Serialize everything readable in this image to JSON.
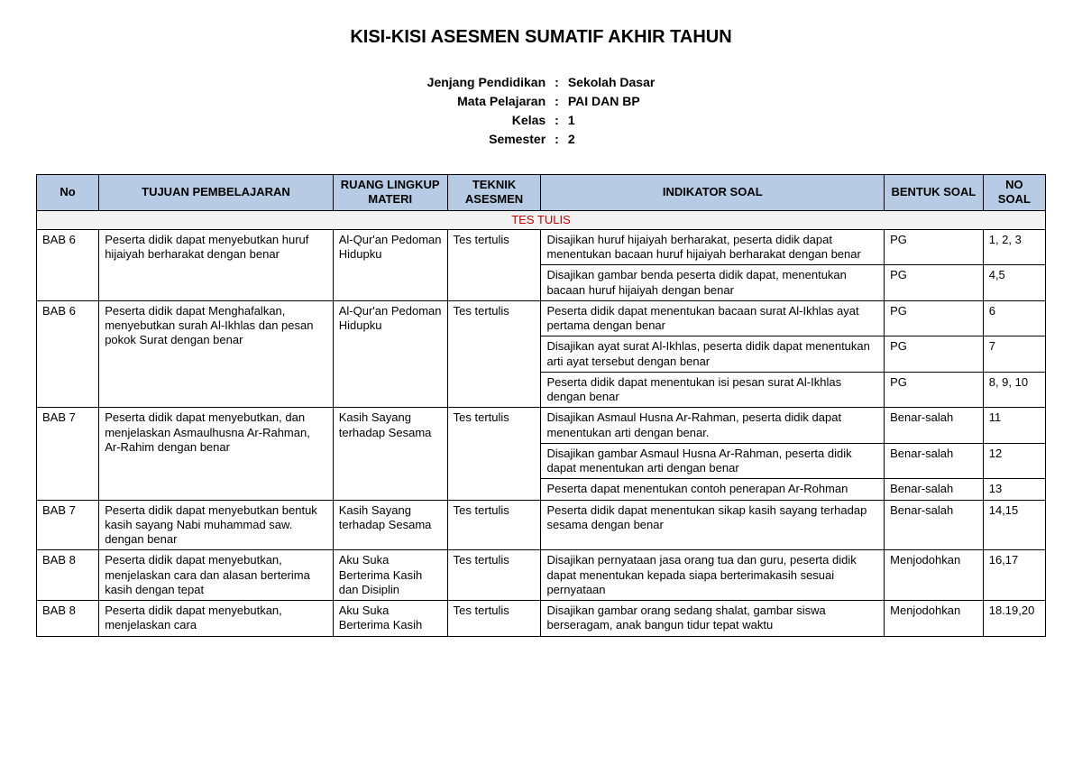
{
  "title": "KISI-KISI ASESMEN SUMATIF AKHIR TAHUN",
  "meta": [
    {
      "label": "Jenjang Pendidikan",
      "value": "Sekolah Dasar"
    },
    {
      "label": "Mata Pelajaran",
      "value": "PAI DAN BP"
    },
    {
      "label": "Kelas",
      "value": "1"
    },
    {
      "label": "Semester",
      "value": "2"
    }
  ],
  "columns": [
    "No",
    "TUJUAN PEMBELAJARAN",
    "RUANG LINGKUP MATERI",
    "TEKNIK ASESMEN",
    "INDIKATOR SOAL",
    "BENTUK SOAL",
    "NO SOAL"
  ],
  "section_label": "TES TULIS",
  "groups": [
    {
      "no": "BAB 6",
      "tujuan": "Peserta didik dapat menyebutkan huruf hijaiyah berharakat dengan benar",
      "ruang": "Al-Qur'an Pedoman Hidupku",
      "teknik": "Tes tertulis",
      "indikator": [
        {
          "text": "Disajikan huruf hijaiyah berharakat, peserta didik dapat menentukan bacaan huruf hijaiyah berharakat dengan benar",
          "bentuk": "PG",
          "nosoal": "1, 2, 3"
        },
        {
          "text": "Disajikan gambar benda peserta didik dapat, menentukan bacaan huruf hijaiyah dengan benar",
          "bentuk": "PG",
          "nosoal": "4,5"
        }
      ]
    },
    {
      "no": "BAB 6",
      "tujuan": "Peserta didik dapat Menghafalkan, menyebutkan surah Al-Ikhlas  dan pesan pokok Surat  dengan benar",
      "ruang": "Al-Qur'an Pedoman Hidupku",
      "teknik": "Tes tertulis",
      "indikator": [
        {
          "text": "Peserta didik dapat menentukan bacaan surat Al-Ikhlas  ayat pertama dengan benar",
          "bentuk": "PG",
          "nosoal": "6"
        },
        {
          "text": "Disajikan ayat surat Al-Ikhlas, peserta didik dapat menentukan arti ayat tersebut dengan benar",
          "bentuk": "PG",
          "nosoal": "7"
        },
        {
          "text": "Peserta didik dapat menentukan isi pesan surat Al-Ikhlas  dengan benar",
          "bentuk": "PG",
          "nosoal": "8, 9, 10"
        }
      ]
    },
    {
      "no": "BAB 7",
      "tujuan": "Peserta didik dapat menyebutkan, dan  menjelaskan Asmaulhusna Ar-Rahman, Ar-Rahim dengan benar",
      "ruang": "Kasih Sayang terhadap Sesama",
      "teknik": "Tes tertulis",
      "indikator": [
        {
          "text": "Disajikan Asmaul Husna Ar-Rahman, peserta didik dapat menentukan arti dengan benar.",
          "bentuk": "Benar-salah",
          "nosoal": "11"
        },
        {
          "text": "Disajikan gambar Asmaul Husna Ar-Rahman, peserta didik dapat menentukan arti dengan benar",
          "bentuk": "Benar-salah",
          "nosoal": "12"
        },
        {
          "text": "Peserta dapat menentukan contoh penerapan Ar-Rohman",
          "bentuk": "Benar-salah",
          "nosoal": "13"
        }
      ]
    },
    {
      "no": "BAB 7",
      "tujuan": "Peserta didik dapat menyebutkan bentuk kasih sayang Nabi muhammad saw. dengan benar",
      "ruang": "Kasih Sayang terhadap Sesama",
      "teknik": "Tes tertulis",
      "indikator": [
        {
          "text": "Peserta didik dapat menentukan sikap kasih sayang terhadap sesama dengan benar",
          "bentuk": "Benar-salah",
          "nosoal": "14,15"
        }
      ]
    },
    {
      "no": "BAB 8",
      "tujuan": "Peserta didik dapat menyebutkan, menjelaskan cara dan alasan berterima kasih dengan tepat",
      "ruang": "Aku Suka Berterima Kasih dan Disiplin",
      "teknik": "Tes tertulis",
      "indikator": [
        {
          "text": "Disajikan pernyataan jasa orang tua dan guru, peserta didik dapat menentukan kepada siapa berterimakasih sesuai pernyataan",
          "bentuk": "Menjodohkan",
          "nosoal": "16,17"
        }
      ]
    },
    {
      "no": "BAB 8",
      "tujuan": "Peserta didik dapat menyebutkan, menjelaskan cara",
      "ruang": "Aku Suka Berterima Kasih",
      "teknik": "Tes tertulis",
      "indikator": [
        {
          "text": "Disajikan gambar orang sedang shalat, gambar siswa berseragam, anak bangun tidur tepat waktu",
          "bentuk": "Menjodohkan",
          "nosoal": "18.19,20"
        }
      ]
    }
  ],
  "colors": {
    "header_bg": "#b7cce4",
    "section_bg": "#f2f2f2",
    "section_text": "#c00000",
    "border": "#000000"
  }
}
